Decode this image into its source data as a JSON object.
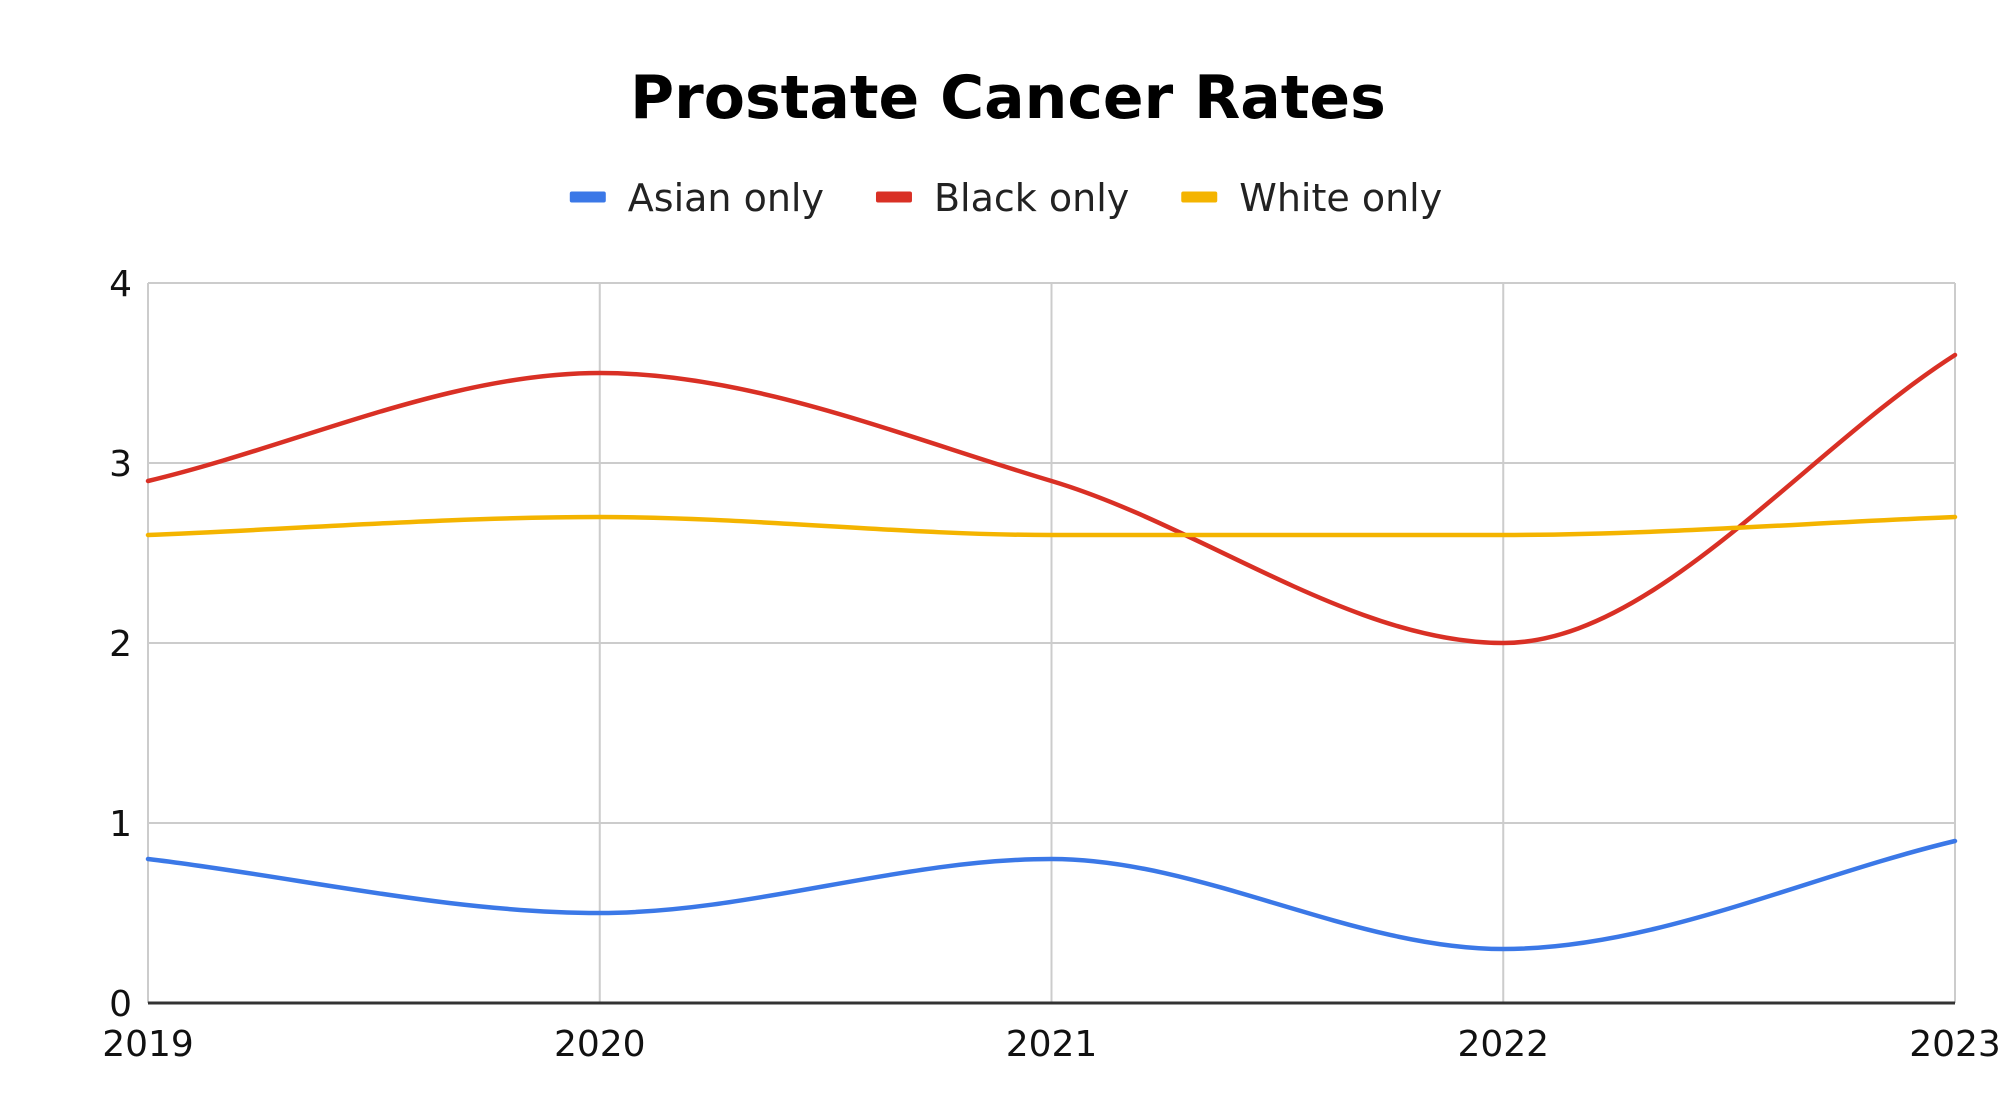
{
  "chart_data": {
    "type": "line",
    "title": "Prostate Cancer Rates",
    "xlabel": "",
    "ylabel": "",
    "categories": [
      "2019",
      "2020",
      "2021",
      "2022",
      "2023"
    ],
    "y_ticks": [
      "0",
      "1",
      "2",
      "3",
      "4"
    ],
    "ylim": [
      0,
      4
    ],
    "grid": true,
    "legend_position": "top",
    "smooth": true,
    "series": [
      {
        "name": "Asian only",
        "color": "#3b78e7",
        "values": [
          0.8,
          0.5,
          0.8,
          0.3,
          0.9
        ]
      },
      {
        "name": "Black only",
        "color": "#d93025",
        "values": [
          2.9,
          3.5,
          2.9,
          2.0,
          3.6
        ]
      },
      {
        "name": "White only",
        "color": "#f4b400",
        "values": [
          2.6,
          2.7,
          2.6,
          2.6,
          2.7
        ]
      }
    ]
  }
}
